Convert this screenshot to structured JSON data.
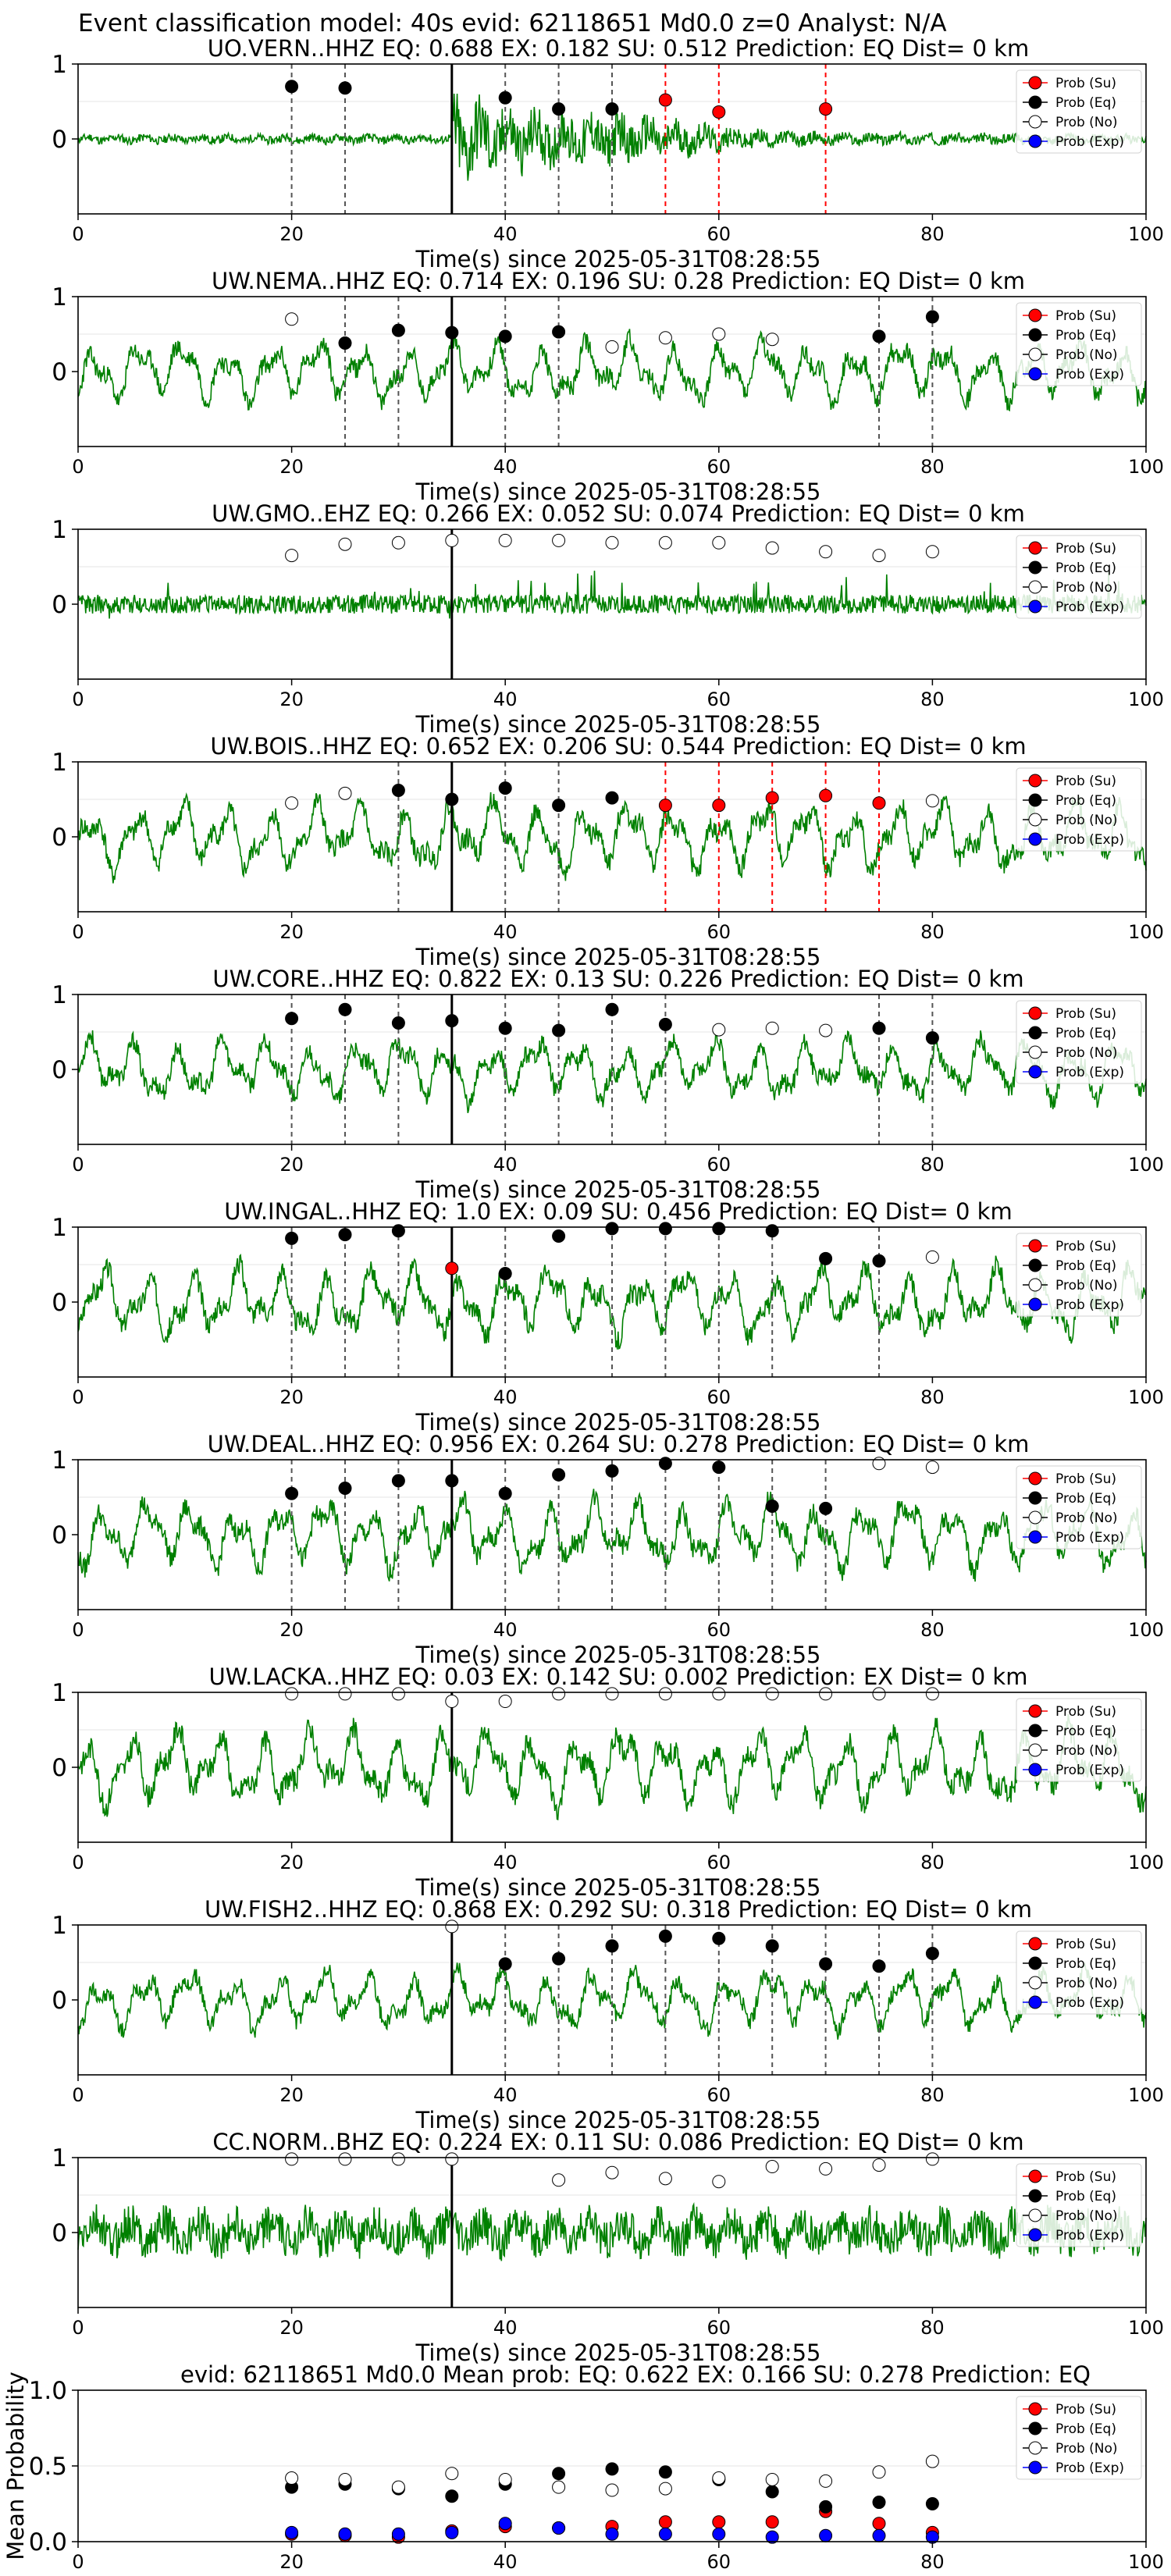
{
  "figure": {
    "suptitle": "Event classification model: 40s evid: 62118651 Md0.0 z=0 Analyst: N/A"
  },
  "legend_labels": [
    "Prob (Su)",
    "Prob (Eq)",
    "Prob (No)",
    "Prob (Exp)"
  ],
  "colors": {
    "waveform": "#008000",
    "su": "#ff0000",
    "eq": "#000000",
    "no": "#ffffff",
    "exp": "#0000ff",
    "pick_line": "#000000",
    "eq_window": "#555555",
    "su_window": "#ff0000"
  },
  "chart_data": [
    {
      "type": "line",
      "title": "UO.VERN..HHZ   EQ: 0.688  EX: 0.182  SU: 0.512   Prediction: EQ    Dist= 0 km",
      "xlabel": "Time(s) since 2025-05-31T08:28:55",
      "xlim": [
        0,
        100
      ],
      "ylim": [
        -1,
        1
      ],
      "xticks": [
        "0",
        "20",
        "40",
        "60",
        "80",
        "100"
      ],
      "yticks": [
        "0",
        "1"
      ],
      "pick_time": 35,
      "waveform": {
        "style": "burst",
        "amp": 0.3,
        "seed": 11
      },
      "eq_windows": [
        20,
        25,
        40,
        45,
        50
      ],
      "su_windows": [
        55,
        60,
        70
      ],
      "points": [
        {
          "x": 20,
          "y": 0.7,
          "class": "eq"
        },
        {
          "x": 25,
          "y": 0.68,
          "class": "eq"
        },
        {
          "x": 40,
          "y": 0.55,
          "class": "eq"
        },
        {
          "x": 45,
          "y": 0.4,
          "class": "eq"
        },
        {
          "x": 50,
          "y": 0.4,
          "class": "eq"
        },
        {
          "x": 55,
          "y": 0.52,
          "class": "su"
        },
        {
          "x": 60,
          "y": 0.36,
          "class": "su"
        },
        {
          "x": 70,
          "y": 0.4,
          "class": "su"
        }
      ]
    },
    {
      "type": "line",
      "title": "UW.NEMA..HHZ   EQ: 0.714  EX: 0.196  SU: 0.28   Prediction: EQ    Dist= 0 km",
      "xlabel": "Time(s) since 2025-05-31T08:28:55",
      "xlim": [
        0,
        100
      ],
      "ylim": [
        -1,
        1
      ],
      "xticks": [
        "0",
        "20",
        "40",
        "60",
        "80",
        "100"
      ],
      "yticks": [
        "0",
        "1"
      ],
      "pick_time": 35,
      "waveform": {
        "style": "oscillating",
        "amp": 0.45,
        "seed": 23
      },
      "eq_windows": [
        25,
        30,
        40,
        45,
        75,
        80
      ],
      "su_windows": [],
      "points": [
        {
          "x": 20,
          "y": 0.7,
          "class": "no"
        },
        {
          "x": 25,
          "y": 0.38,
          "class": "eq"
        },
        {
          "x": 30,
          "y": 0.55,
          "class": "eq"
        },
        {
          "x": 35,
          "y": 0.52,
          "class": "eq"
        },
        {
          "x": 40,
          "y": 0.47,
          "class": "eq"
        },
        {
          "x": 45,
          "y": 0.53,
          "class": "eq"
        },
        {
          "x": 50,
          "y": 0.33,
          "class": "no"
        },
        {
          "x": 55,
          "y": 0.45,
          "class": "no"
        },
        {
          "x": 60,
          "y": 0.5,
          "class": "no"
        },
        {
          "x": 65,
          "y": 0.43,
          "class": "no"
        },
        {
          "x": 75,
          "y": 0.47,
          "class": "eq"
        },
        {
          "x": 80,
          "y": 0.73,
          "class": "eq"
        }
      ]
    },
    {
      "type": "line",
      "title": "UW.GMO..EHZ   EQ: 0.266  EX: 0.052  SU: 0.074   Prediction: EQ    Dist= 0 km",
      "xlabel": "Time(s) since 2025-05-31T08:28:55",
      "xlim": [
        0,
        100
      ],
      "ylim": [
        -1,
        1
      ],
      "xticks": [
        "0",
        "20",
        "40",
        "60",
        "80",
        "100"
      ],
      "yticks": [
        "0",
        "1"
      ],
      "pick_time": 35,
      "waveform": {
        "style": "spiky",
        "amp": 0.28,
        "seed": 37
      },
      "eq_windows": [],
      "su_windows": [],
      "points": [
        {
          "x": 20,
          "y": 0.65,
          "class": "no"
        },
        {
          "x": 25,
          "y": 0.8,
          "class": "no"
        },
        {
          "x": 30,
          "y": 0.82,
          "class": "no"
        },
        {
          "x": 35,
          "y": 0.85,
          "class": "no"
        },
        {
          "x": 40,
          "y": 0.85,
          "class": "no"
        },
        {
          "x": 45,
          "y": 0.85,
          "class": "no"
        },
        {
          "x": 50,
          "y": 0.82,
          "class": "no"
        },
        {
          "x": 55,
          "y": 0.82,
          "class": "no"
        },
        {
          "x": 60,
          "y": 0.82,
          "class": "no"
        },
        {
          "x": 65,
          "y": 0.75,
          "class": "no"
        },
        {
          "x": 70,
          "y": 0.7,
          "class": "no"
        },
        {
          "x": 75,
          "y": 0.65,
          "class": "no"
        },
        {
          "x": 80,
          "y": 0.7,
          "class": "no"
        }
      ]
    },
    {
      "type": "line",
      "title": "UW.BOIS..HHZ   EQ: 0.652  EX: 0.206  SU: 0.544   Prediction: EQ    Dist= 0 km",
      "xlabel": "Time(s) since 2025-05-31T08:28:55",
      "xlim": [
        0,
        100
      ],
      "ylim": [
        -1,
        1
      ],
      "xticks": [
        "0",
        "20",
        "40",
        "60",
        "80",
        "100"
      ],
      "yticks": [
        "0",
        "1"
      ],
      "pick_time": 35,
      "waveform": {
        "style": "oscillating",
        "amp": 0.5,
        "seed": 41
      },
      "eq_windows": [
        30,
        40,
        45
      ],
      "su_windows": [
        55,
        60,
        65,
        70,
        75
      ],
      "points": [
        {
          "x": 20,
          "y": 0.45,
          "class": "no"
        },
        {
          "x": 25,
          "y": 0.58,
          "class": "no"
        },
        {
          "x": 30,
          "y": 0.62,
          "class": "eq"
        },
        {
          "x": 35,
          "y": 0.5,
          "class": "eq"
        },
        {
          "x": 40,
          "y": 0.65,
          "class": "eq"
        },
        {
          "x": 45,
          "y": 0.42,
          "class": "eq"
        },
        {
          "x": 50,
          "y": 0.52,
          "class": "eq"
        },
        {
          "x": 55,
          "y": 0.42,
          "class": "su"
        },
        {
          "x": 60,
          "y": 0.42,
          "class": "su"
        },
        {
          "x": 65,
          "y": 0.52,
          "class": "su"
        },
        {
          "x": 70,
          "y": 0.55,
          "class": "su"
        },
        {
          "x": 75,
          "y": 0.45,
          "class": "su"
        },
        {
          "x": 80,
          "y": 0.48,
          "class": "no"
        }
      ]
    },
    {
      "type": "line",
      "title": "UW.CORE..HHZ   EQ: 0.822  EX: 0.13  SU: 0.226   Prediction: EQ    Dist= 0 km",
      "xlabel": "Time(s) since 2025-05-31T08:28:55",
      "xlim": [
        0,
        100
      ],
      "ylim": [
        -1,
        1
      ],
      "xticks": [
        "0",
        "20",
        "40",
        "60",
        "80",
        "100"
      ],
      "yticks": [
        "0",
        "1"
      ],
      "pick_time": 35,
      "waveform": {
        "style": "oscillating",
        "amp": 0.45,
        "seed": 53
      },
      "eq_windows": [
        20,
        25,
        30,
        40,
        45,
        50,
        55,
        75,
        80
      ],
      "su_windows": [],
      "points": [
        {
          "x": 20,
          "y": 0.68,
          "class": "eq"
        },
        {
          "x": 25,
          "y": 0.8,
          "class": "eq"
        },
        {
          "x": 30,
          "y": 0.62,
          "class": "eq"
        },
        {
          "x": 35,
          "y": 0.65,
          "class": "eq"
        },
        {
          "x": 40,
          "y": 0.55,
          "class": "eq"
        },
        {
          "x": 45,
          "y": 0.52,
          "class": "eq"
        },
        {
          "x": 50,
          "y": 0.8,
          "class": "eq"
        },
        {
          "x": 55,
          "y": 0.6,
          "class": "eq"
        },
        {
          "x": 60,
          "y": 0.53,
          "class": "no"
        },
        {
          "x": 65,
          "y": 0.55,
          "class": "no"
        },
        {
          "x": 70,
          "y": 0.52,
          "class": "no"
        },
        {
          "x": 75,
          "y": 0.55,
          "class": "eq"
        },
        {
          "x": 80,
          "y": 0.42,
          "class": "eq"
        }
      ]
    },
    {
      "type": "line",
      "title": "UW.INGAL..HHZ   EQ: 1.0  EX: 0.09  SU: 0.456   Prediction: EQ    Dist= 0 km",
      "xlabel": "Time(s) since 2025-05-31T08:28:55",
      "xlim": [
        0,
        100
      ],
      "ylim": [
        -1,
        1
      ],
      "xticks": [
        "0",
        "20",
        "40",
        "60",
        "80",
        "100"
      ],
      "yticks": [
        "0",
        "1"
      ],
      "pick_time": 35,
      "waveform": {
        "style": "oscillating",
        "amp": 0.5,
        "seed": 67
      },
      "eq_windows": [
        20,
        25,
        30,
        40,
        50,
        55,
        60,
        65,
        75
      ],
      "su_windows": [],
      "points": [
        {
          "x": 20,
          "y": 0.85,
          "class": "eq"
        },
        {
          "x": 25,
          "y": 0.9,
          "class": "eq"
        },
        {
          "x": 30,
          "y": 0.95,
          "class": "eq"
        },
        {
          "x": 35,
          "y": 0.45,
          "class": "su"
        },
        {
          "x": 40,
          "y": 0.38,
          "class": "eq"
        },
        {
          "x": 45,
          "y": 0.88,
          "class": "eq"
        },
        {
          "x": 50,
          "y": 0.98,
          "class": "eq"
        },
        {
          "x": 55,
          "y": 0.98,
          "class": "eq"
        },
        {
          "x": 60,
          "y": 0.98,
          "class": "eq"
        },
        {
          "x": 65,
          "y": 0.95,
          "class": "eq"
        },
        {
          "x": 70,
          "y": 0.58,
          "class": "eq"
        },
        {
          "x": 75,
          "y": 0.55,
          "class": "eq"
        },
        {
          "x": 80,
          "y": 0.6,
          "class": "no"
        }
      ]
    },
    {
      "type": "line",
      "title": "UW.DEAL..HHZ   EQ: 0.956  EX: 0.264  SU: 0.278   Prediction: EQ    Dist= 0 km",
      "xlabel": "Time(s) since 2025-05-31T08:28:55",
      "xlim": [
        0,
        100
      ],
      "ylim": [
        -1,
        1
      ],
      "xticks": [
        "0",
        "20",
        "40",
        "60",
        "80",
        "100"
      ],
      "yticks": [
        "0",
        "1"
      ],
      "pick_time": 35,
      "waveform": {
        "style": "oscillating",
        "amp": 0.5,
        "seed": 79
      },
      "eq_windows": [
        20,
        25,
        30,
        40,
        45,
        50,
        55,
        60,
        65,
        70
      ],
      "su_windows": [],
      "points": [
        {
          "x": 20,
          "y": 0.55,
          "class": "eq"
        },
        {
          "x": 25,
          "y": 0.62,
          "class": "eq"
        },
        {
          "x": 30,
          "y": 0.72,
          "class": "eq"
        },
        {
          "x": 35,
          "y": 0.72,
          "class": "eq"
        },
        {
          "x": 40,
          "y": 0.55,
          "class": "eq"
        },
        {
          "x": 45,
          "y": 0.8,
          "class": "eq"
        },
        {
          "x": 50,
          "y": 0.85,
          "class": "eq"
        },
        {
          "x": 55,
          "y": 0.95,
          "class": "eq"
        },
        {
          "x": 60,
          "y": 0.9,
          "class": "eq"
        },
        {
          "x": 65,
          "y": 0.38,
          "class": "eq"
        },
        {
          "x": 70,
          "y": 0.35,
          "class": "eq"
        },
        {
          "x": 75,
          "y": 0.95,
          "class": "no"
        },
        {
          "x": 80,
          "y": 0.9,
          "class": "no"
        }
      ]
    },
    {
      "type": "line",
      "title": "UW.LACKA..HHZ   EQ: 0.03  EX: 0.142  SU: 0.002   Prediction: EX    Dist= 0 km",
      "xlabel": "Time(s) since 2025-05-31T08:28:55",
      "xlim": [
        0,
        100
      ],
      "ylim": [
        -1,
        1
      ],
      "xticks": [
        "0",
        "20",
        "40",
        "60",
        "80",
        "100"
      ],
      "yticks": [
        "0",
        "1"
      ],
      "pick_time": 35,
      "waveform": {
        "style": "oscillating",
        "amp": 0.55,
        "seed": 83
      },
      "eq_windows": [],
      "su_windows": [],
      "points": [
        {
          "x": 20,
          "y": 0.98,
          "class": "no"
        },
        {
          "x": 25,
          "y": 0.98,
          "class": "no"
        },
        {
          "x": 30,
          "y": 0.98,
          "class": "no"
        },
        {
          "x": 35,
          "y": 0.88,
          "class": "no"
        },
        {
          "x": 40,
          "y": 0.88,
          "class": "no"
        },
        {
          "x": 45,
          "y": 0.98,
          "class": "no"
        },
        {
          "x": 50,
          "y": 0.98,
          "class": "no"
        },
        {
          "x": 55,
          "y": 0.98,
          "class": "no"
        },
        {
          "x": 60,
          "y": 0.98,
          "class": "no"
        },
        {
          "x": 65,
          "y": 0.98,
          "class": "no"
        },
        {
          "x": 70,
          "y": 0.98,
          "class": "no"
        },
        {
          "x": 75,
          "y": 0.98,
          "class": "no"
        },
        {
          "x": 80,
          "y": 0.98,
          "class": "no"
        }
      ]
    },
    {
      "type": "line",
      "title": "UW.FISH2..HHZ   EQ: 0.868  EX: 0.292  SU: 0.318   Prediction: EQ    Dist= 0 km",
      "xlabel": "Time(s) since 2025-05-31T08:28:55",
      "xlim": [
        0,
        100
      ],
      "ylim": [
        -1,
        1
      ],
      "xticks": [
        "0",
        "20",
        "40",
        "60",
        "80",
        "100"
      ],
      "yticks": [
        "0",
        "1"
      ],
      "pick_time": 35,
      "waveform": {
        "style": "oscillating",
        "amp": 0.42,
        "seed": 97
      },
      "eq_windows": [
        40,
        45,
        50,
        55,
        60,
        65,
        70,
        75,
        80
      ],
      "su_windows": [],
      "points": [
        {
          "x": 35,
          "y": 0.98,
          "class": "no"
        },
        {
          "x": 40,
          "y": 0.48,
          "class": "eq"
        },
        {
          "x": 45,
          "y": 0.55,
          "class": "eq"
        },
        {
          "x": 50,
          "y": 0.72,
          "class": "eq"
        },
        {
          "x": 55,
          "y": 0.85,
          "class": "eq"
        },
        {
          "x": 60,
          "y": 0.82,
          "class": "eq"
        },
        {
          "x": 65,
          "y": 0.72,
          "class": "eq"
        },
        {
          "x": 70,
          "y": 0.48,
          "class": "eq"
        },
        {
          "x": 75,
          "y": 0.45,
          "class": "eq"
        },
        {
          "x": 80,
          "y": 0.62,
          "class": "eq"
        }
      ]
    },
    {
      "type": "line",
      "title": "CC.NORM..BHZ   EQ: 0.224  EX: 0.11  SU: 0.086   Prediction: EQ    Dist= 0 km",
      "xlabel": "Time(s) since 2025-05-31T08:28:55",
      "xlim": [
        0,
        100
      ],
      "ylim": [
        -1,
        1
      ],
      "xticks": [
        "0",
        "20",
        "40",
        "60",
        "80",
        "100"
      ],
      "yticks": [
        "0",
        "1"
      ],
      "pick_time": 35,
      "waveform": {
        "style": "noise",
        "amp": 0.4,
        "seed": 103
      },
      "eq_windows": [],
      "su_windows": [],
      "points": [
        {
          "x": 20,
          "y": 0.98,
          "class": "no"
        },
        {
          "x": 25,
          "y": 0.98,
          "class": "no"
        },
        {
          "x": 30,
          "y": 0.98,
          "class": "no"
        },
        {
          "x": 35,
          "y": 0.98,
          "class": "no"
        },
        {
          "x": 45,
          "y": 0.7,
          "class": "no"
        },
        {
          "x": 50,
          "y": 0.8,
          "class": "no"
        },
        {
          "x": 55,
          "y": 0.72,
          "class": "no"
        },
        {
          "x": 60,
          "y": 0.68,
          "class": "no"
        },
        {
          "x": 65,
          "y": 0.88,
          "class": "no"
        },
        {
          "x": 70,
          "y": 0.85,
          "class": "no"
        },
        {
          "x": 75,
          "y": 0.9,
          "class": "no"
        },
        {
          "x": 80,
          "y": 0.98,
          "class": "no"
        }
      ]
    },
    {
      "type": "scatter",
      "title": "evid: 62118651  Md0.0   Mean prob:   EQ: 0.622  EX: 0.166  SU: 0.278   Prediction: EQ",
      "ylabel": "Mean Probability",
      "xlim": [
        0,
        100
      ],
      "ylim": [
        0,
        1
      ],
      "xticks": [
        "0",
        "20",
        "40",
        "60",
        "80",
        "100"
      ],
      "yticks": [
        "0.0",
        "0.5",
        "1.0"
      ],
      "grid": true,
      "x": [
        20,
        25,
        30,
        35,
        40,
        45,
        50,
        55,
        60,
        65,
        70,
        75,
        80
      ],
      "series": [
        {
          "name": "Prob (Su)",
          "class": "su",
          "values": [
            0.05,
            0.04,
            0.03,
            0.07,
            0.1,
            0.09,
            0.1,
            0.13,
            0.13,
            0.13,
            0.2,
            0.12,
            0.06
          ]
        },
        {
          "name": "Prob (Eq)",
          "class": "eq",
          "values": [
            0.36,
            0.38,
            0.35,
            0.3,
            0.38,
            0.45,
            0.48,
            0.46,
            0.41,
            0.33,
            0.23,
            0.26,
            0.25
          ]
        },
        {
          "name": "Prob (No)",
          "class": "no",
          "values": [
            0.42,
            0.41,
            0.36,
            0.45,
            0.41,
            0.36,
            0.34,
            0.35,
            0.42,
            0.41,
            0.4,
            0.46,
            0.53
          ]
        },
        {
          "name": "Prob (Exp)",
          "class": "exp",
          "values": [
            0.06,
            0.05,
            0.05,
            0.06,
            0.12,
            0.09,
            0.05,
            0.05,
            0.05,
            0.03,
            0.04,
            0.04,
            0.03
          ]
        }
      ]
    }
  ]
}
